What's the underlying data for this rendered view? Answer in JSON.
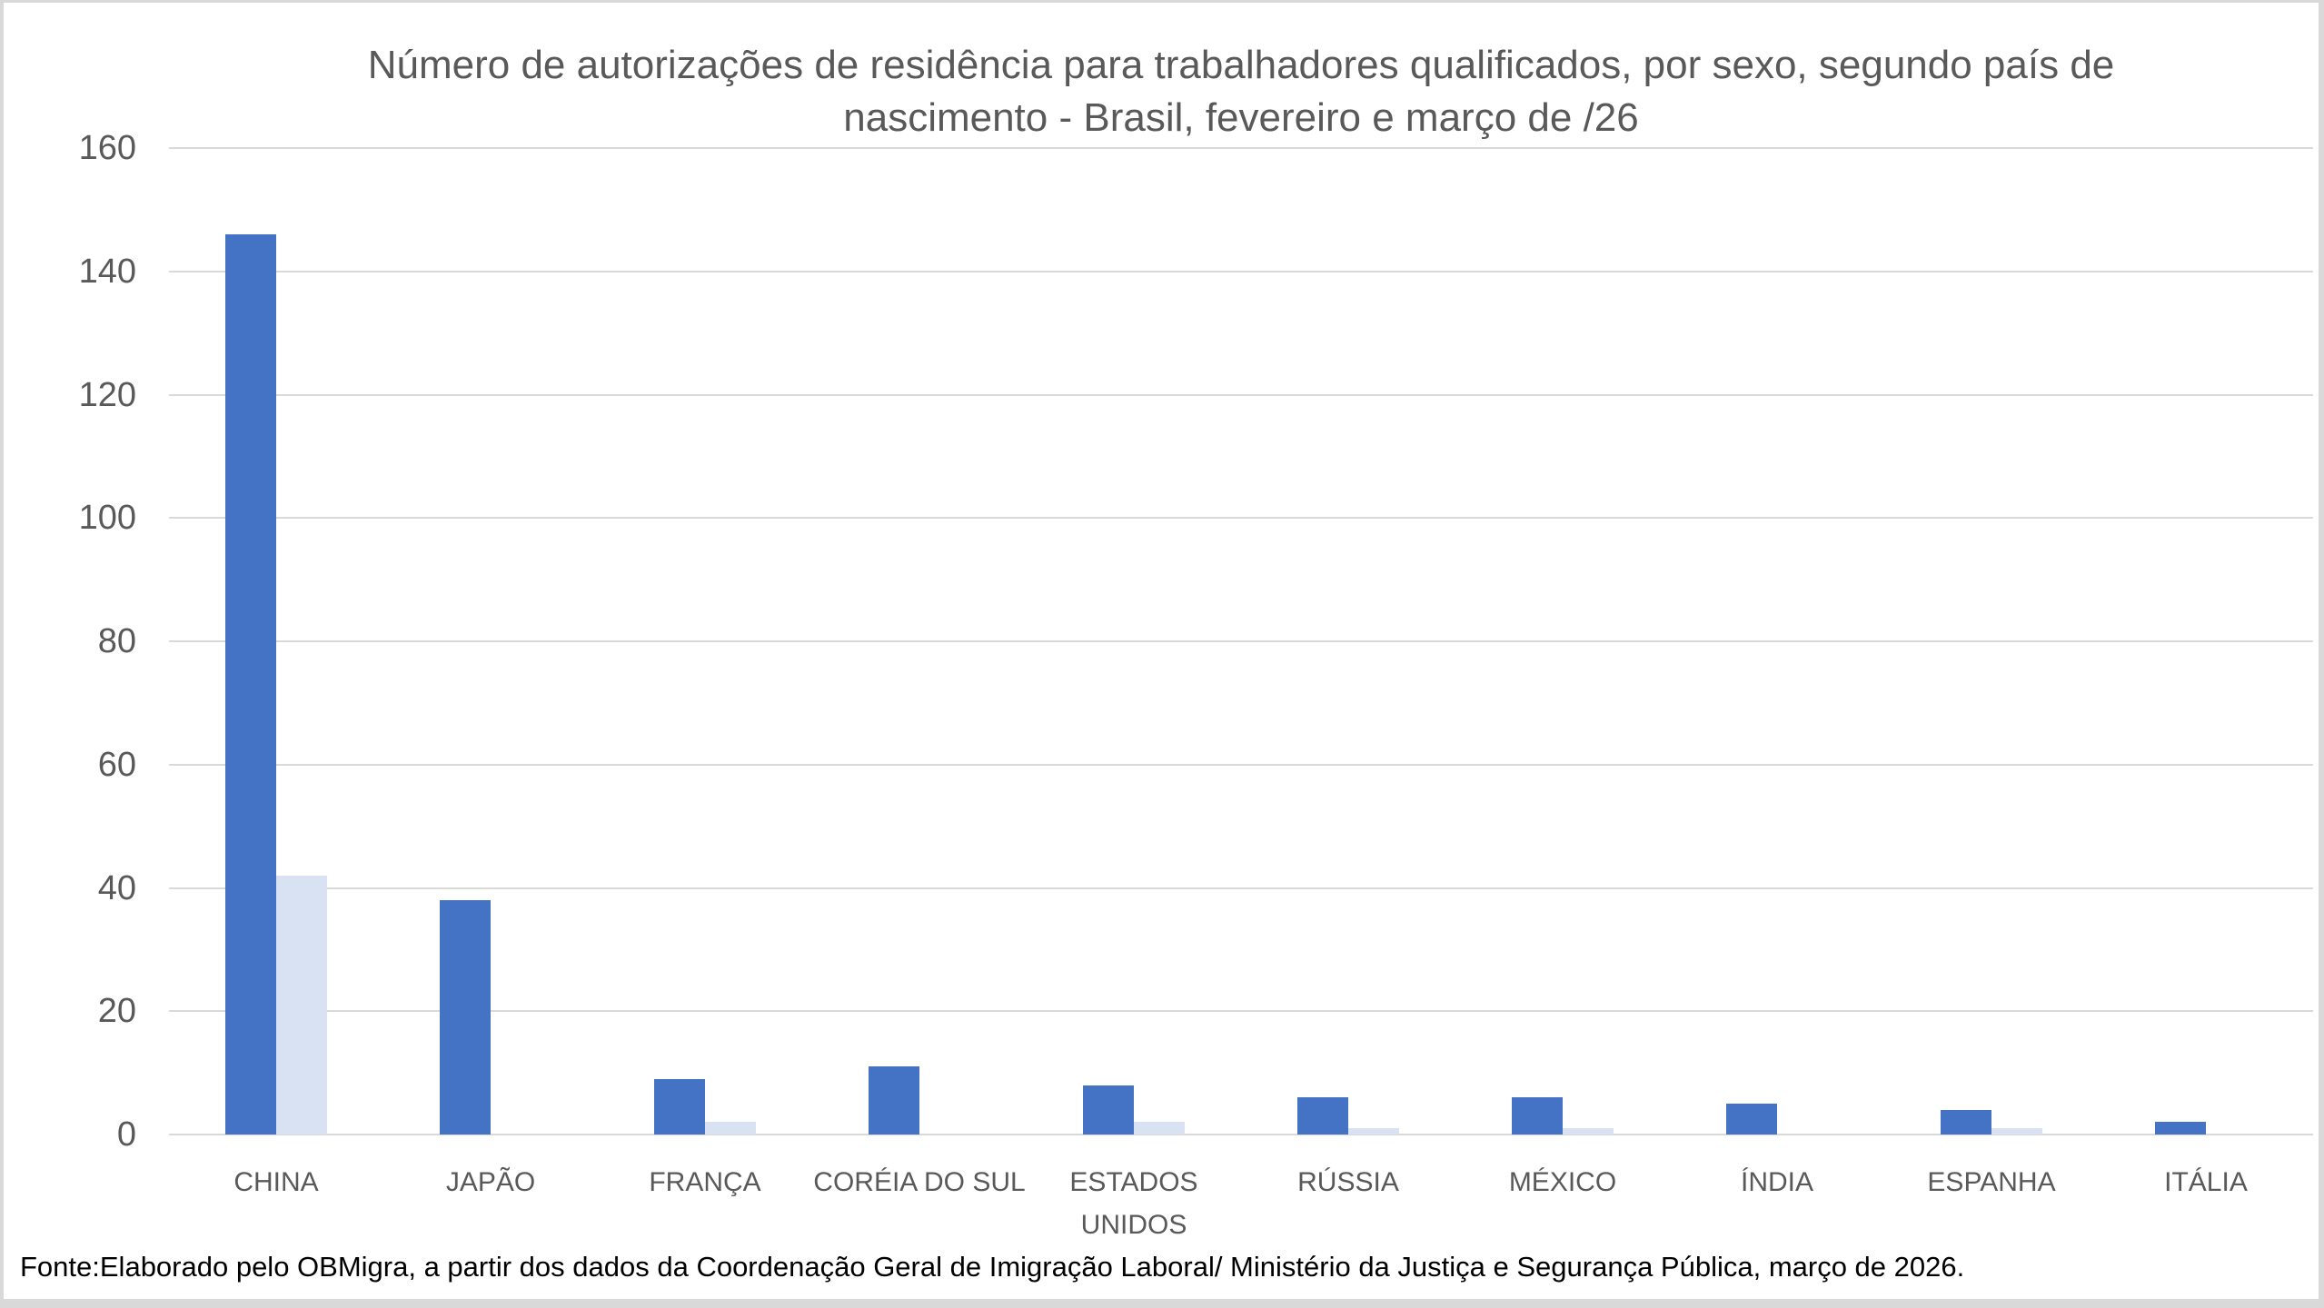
{
  "frame": {
    "background": "#ffffff",
    "border_color": "#d9d9d9"
  },
  "title": {
    "line1": "Número de autorizações de residência para trabalhadores qualificados, por sexo, segundo país de",
    "line2": "nascimento - Brasil, fevereiro e março de /26",
    "color": "#595959"
  },
  "source_note": "Fonte:Elaborado pelo OBMigra, a partir dos dados da Coordenação Geral de Imigração Laboral/ Ministério da Justiça e Segurança Pública, março de 2026.",
  "chart_data": {
    "type": "bar",
    "title": "Número de autorizações de residência para trabalhadores qualificados, por sexo, segundo país de nascimento - Brasil, fevereiro e março de /26",
    "categories": [
      "CHINA",
      "JAPÃO",
      "FRANÇA",
      "CORÉIA DO SUL",
      "ESTADOS UNIDOS",
      "RÚSSIA",
      "MÉXICO",
      "ÍNDIA",
      "ESPANHA",
      "ITÁLIA"
    ],
    "series": [
      {
        "name": "serie-azul-escura",
        "color": "#4472c4",
        "values": [
          146,
          38,
          9,
          11,
          8,
          6,
          6,
          5,
          4,
          2
        ]
      },
      {
        "name": "serie-azul-clara",
        "color": "#d9e2f3",
        "values": [
          42,
          0,
          2,
          0,
          2,
          1,
          1,
          0,
          1,
          0
        ]
      }
    ],
    "ylim": [
      0,
      160
    ],
    "yticks": [
      0,
      20,
      40,
      60,
      80,
      100,
      120,
      140,
      160
    ],
    "grid": true,
    "legend": "none",
    "gridline_color": "#d9d9d9",
    "axis_text_color": "#595959",
    "xlabel": "",
    "ylabel": ""
  }
}
